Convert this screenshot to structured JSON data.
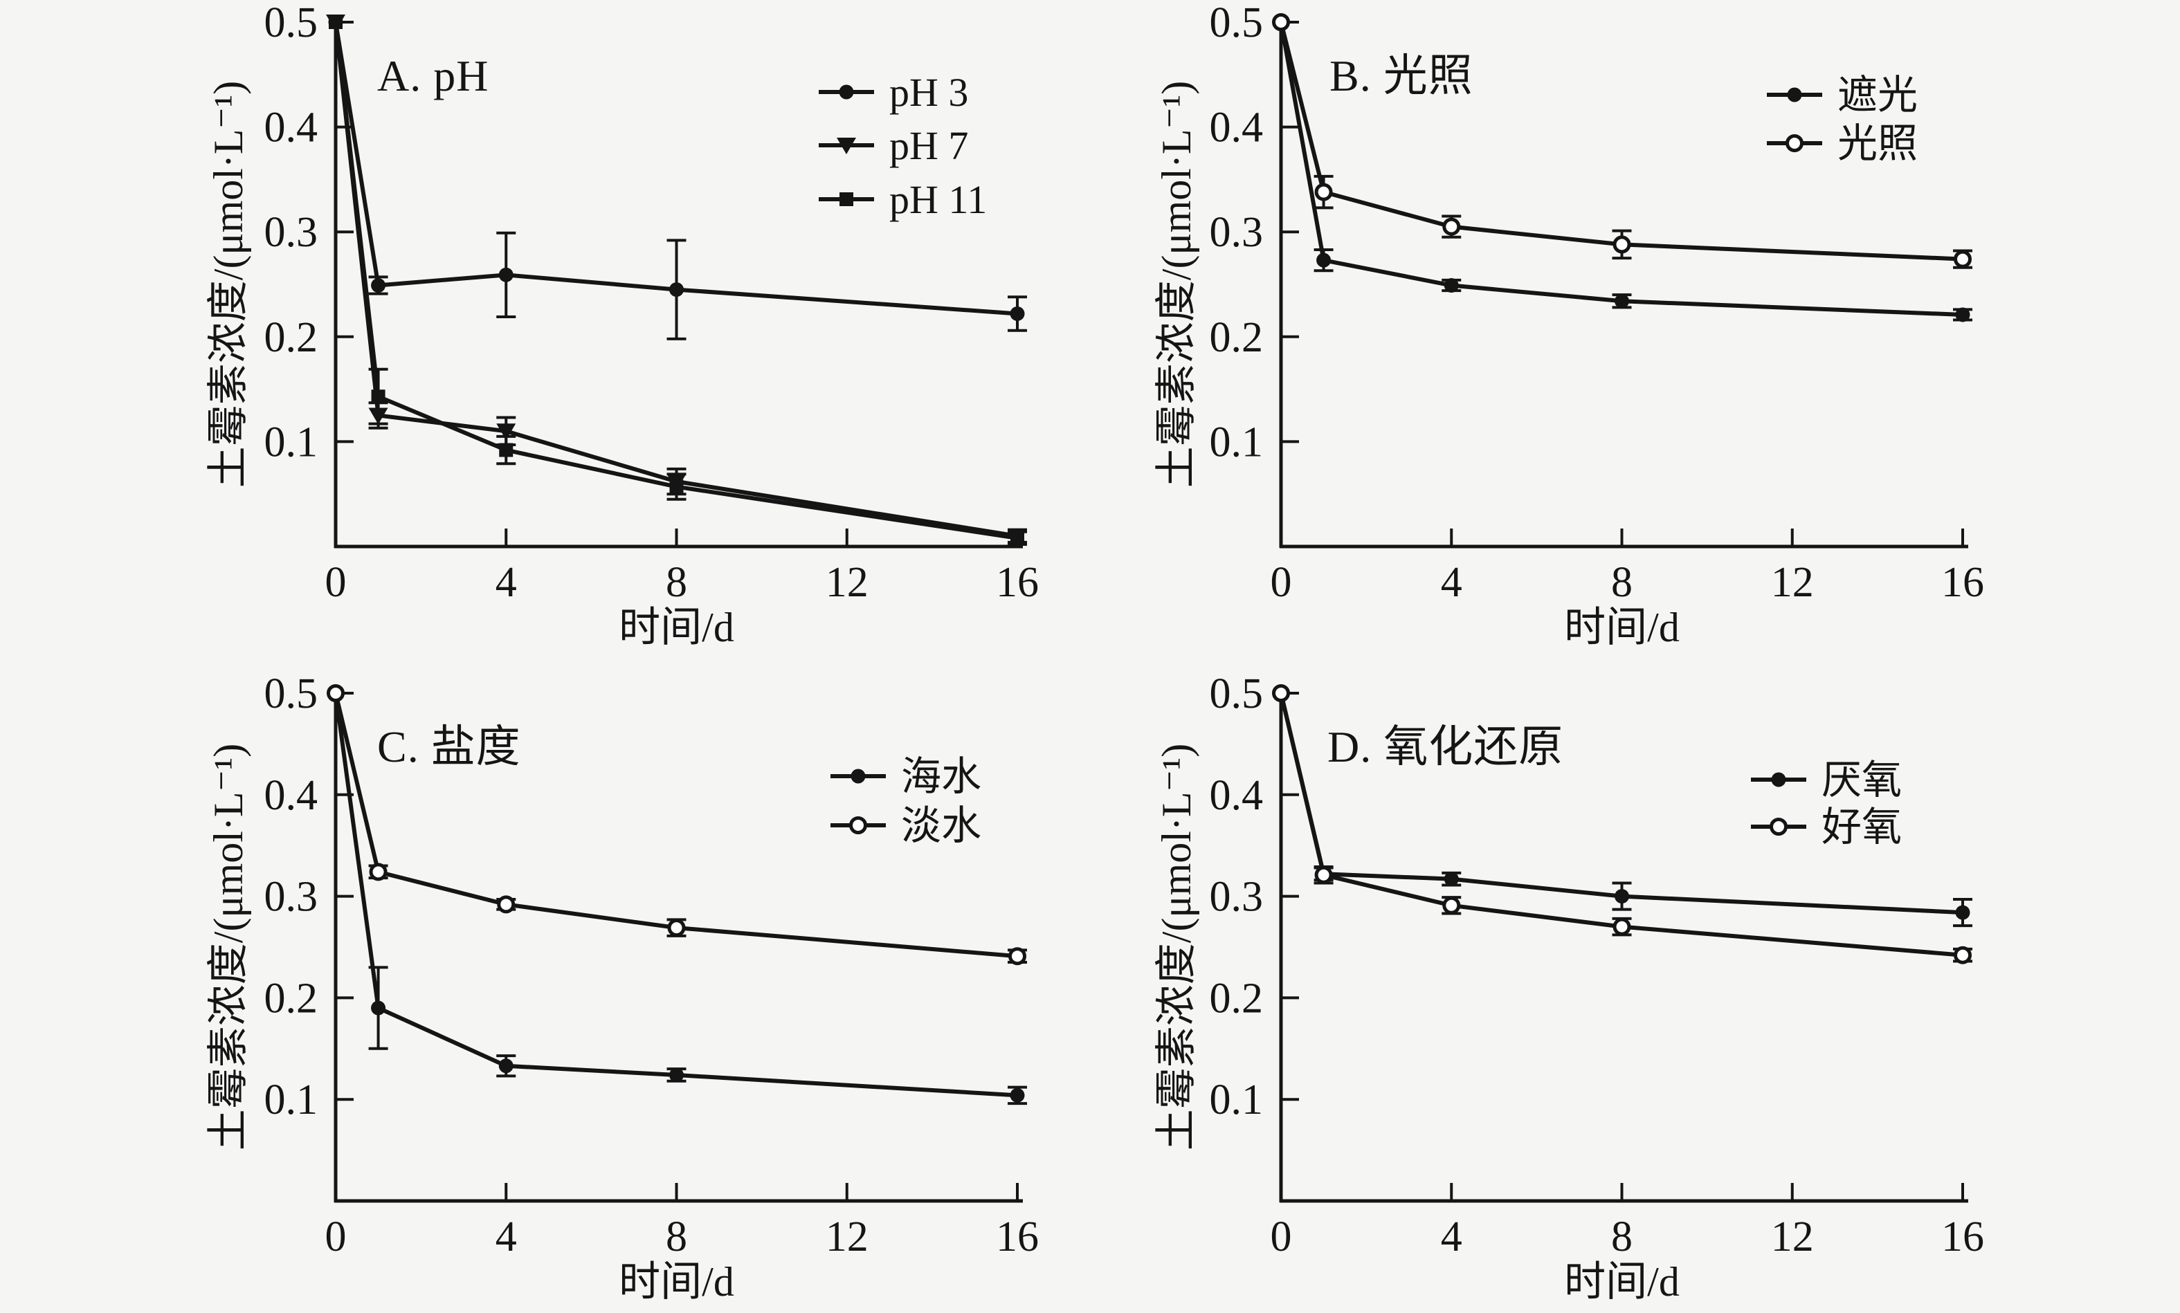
{
  "figure": {
    "background": "#f5f5f4",
    "ink": "#151515",
    "xlabel": "时间/d",
    "ylabel": "土霉素浓度/(μmol·L⁻¹)",
    "x_ticks": [
      0,
      4,
      8,
      12,
      16
    ],
    "y_ticks": [
      0.1,
      0.2,
      0.3,
      0.4,
      0.5
    ],
    "xlim": [
      0,
      16
    ],
    "ylim": [
      0,
      0.5
    ]
  },
  "chart_data": [
    {
      "id": "a",
      "type": "line",
      "title": "A. pH",
      "xlabel": "时间/d",
      "ylabel": "土霉素浓度/(μmol·L⁻¹)",
      "xlim": [
        0,
        16
      ],
      "ylim": [
        0,
        0.5
      ],
      "x": [
        0,
        1,
        4,
        8,
        16
      ],
      "series": [
        {
          "name": "pH 3",
          "marker": "circle-filled",
          "values": [
            0.5,
            0.249,
            0.259,
            0.245,
            0.222
          ],
          "errors": [
            0,
            0.008,
            0.04,
            0.047,
            0.016
          ]
        },
        {
          "name": "pH 7",
          "marker": "triangle-down-filled",
          "values": [
            0.5,
            0.125,
            0.11,
            0.062,
            0.01
          ],
          "errors": [
            0,
            0.012,
            0.013,
            0.012,
            0.006
          ]
        },
        {
          "name": "pH 11",
          "marker": "square-filled",
          "values": [
            0.5,
            0.143,
            0.092,
            0.057,
            0.008
          ],
          "errors": [
            0,
            0.026,
            0.013,
            0.012,
            0.006
          ]
        }
      ]
    },
    {
      "id": "b",
      "type": "line",
      "title": "B. 光照",
      "xlabel": "时间/d",
      "ylabel": "土霉素浓度/(μmol·L⁻¹)",
      "xlim": [
        0,
        16
      ],
      "ylim": [
        0,
        0.5
      ],
      "x": [
        0,
        1,
        4,
        8,
        16
      ],
      "series": [
        {
          "name": "遮光",
          "marker": "circle-filled",
          "values": [
            0.5,
            0.273,
            0.249,
            0.234,
            0.221
          ],
          "errors": [
            0,
            0.01,
            0.005,
            0.006,
            0.005
          ]
        },
        {
          "name": "光照",
          "marker": "circle-open",
          "values": [
            0.5,
            0.338,
            0.305,
            0.288,
            0.274
          ],
          "errors": [
            0,
            0.015,
            0.01,
            0.013,
            0.008
          ]
        }
      ]
    },
    {
      "id": "c",
      "type": "line",
      "title": "C. 盐度",
      "xlabel": "时间/d",
      "ylabel": "土霉素浓度/(μmol·L⁻¹)",
      "xlim": [
        0,
        16
      ],
      "ylim": [
        0,
        0.5
      ],
      "x": [
        0,
        1,
        4,
        8,
        16
      ],
      "series": [
        {
          "name": "海水",
          "marker": "circle-filled",
          "values": [
            0.5,
            0.19,
            0.133,
            0.124,
            0.104
          ],
          "errors": [
            0,
            0.04,
            0.01,
            0.006,
            0.008
          ]
        },
        {
          "name": "淡水",
          "marker": "circle-open",
          "values": [
            0.5,
            0.324,
            0.292,
            0.269,
            0.241
          ],
          "errors": [
            0,
            0.006,
            0.005,
            0.008,
            0.006
          ]
        }
      ]
    },
    {
      "id": "d",
      "type": "line",
      "title": "D. 氧化还原",
      "xlabel": "时间/d",
      "ylabel": "土霉素浓度/(μmol·L⁻¹)",
      "xlim": [
        0,
        16
      ],
      "ylim": [
        0,
        0.5
      ],
      "x": [
        0,
        1,
        4,
        8,
        16
      ],
      "series": [
        {
          "name": "厌氧",
          "marker": "circle-filled",
          "values": [
            0.5,
            0.322,
            0.317,
            0.3,
            0.284
          ],
          "errors": [
            0,
            0.006,
            0.006,
            0.013,
            0.013
          ]
        },
        {
          "name": "好氧",
          "marker": "circle-open",
          "values": [
            0.5,
            0.321,
            0.291,
            0.27,
            0.242
          ],
          "errors": [
            0,
            0.008,
            0.008,
            0.008,
            0.006
          ]
        }
      ]
    }
  ]
}
